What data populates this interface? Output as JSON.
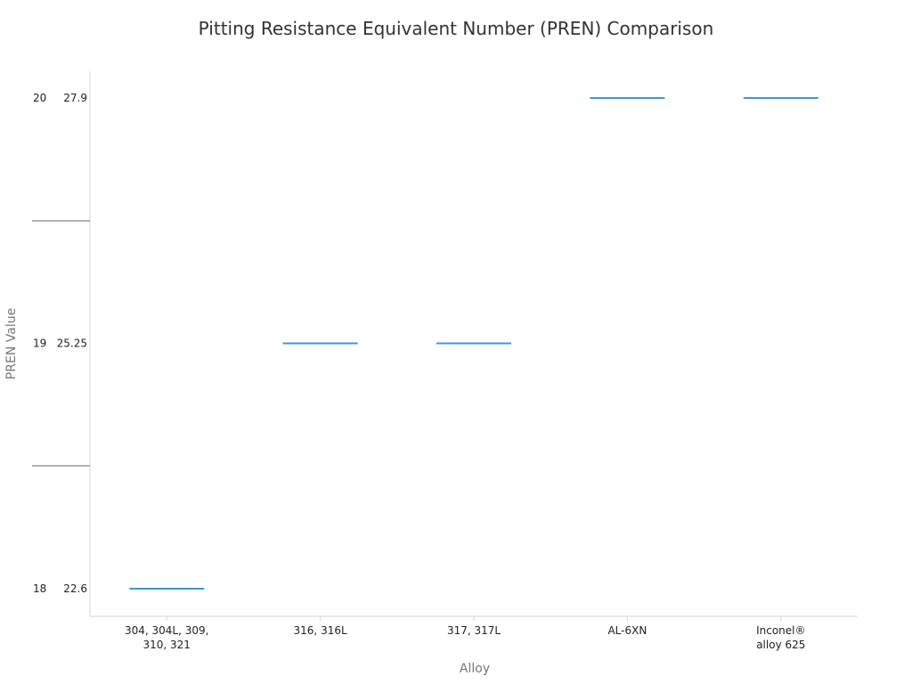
{
  "chart_data": {
    "type": "line",
    "title": "Pitting Resistance Equivalent Number (PREN) Comparison",
    "xlabel": "Alloy",
    "ylabel": "PREN Value",
    "categories": [
      [
        "304, 304L, 309,",
        "310, 321"
      ],
      [
        "316, 316L"
      ],
      [
        "317, 317L"
      ],
      [
        "AL-6XN"
      ],
      [
        "Inconel®",
        "alloy 625"
      ]
    ],
    "values": [
      22.6,
      25.25,
      25.25,
      27.9,
      27.9
    ],
    "y_ticks": [
      {
        "inner": "18",
        "outer": "22.6",
        "value": 22.6
      },
      {
        "inner": "19",
        "outer": "25.25",
        "value": 25.25
      },
      {
        "inner": "20",
        "outer": "27.9",
        "value": 27.9
      }
    ],
    "ylim": [
      22.6,
      27.9
    ],
    "series_color": "#3a97dd",
    "grid": false,
    "legend": "none"
  }
}
